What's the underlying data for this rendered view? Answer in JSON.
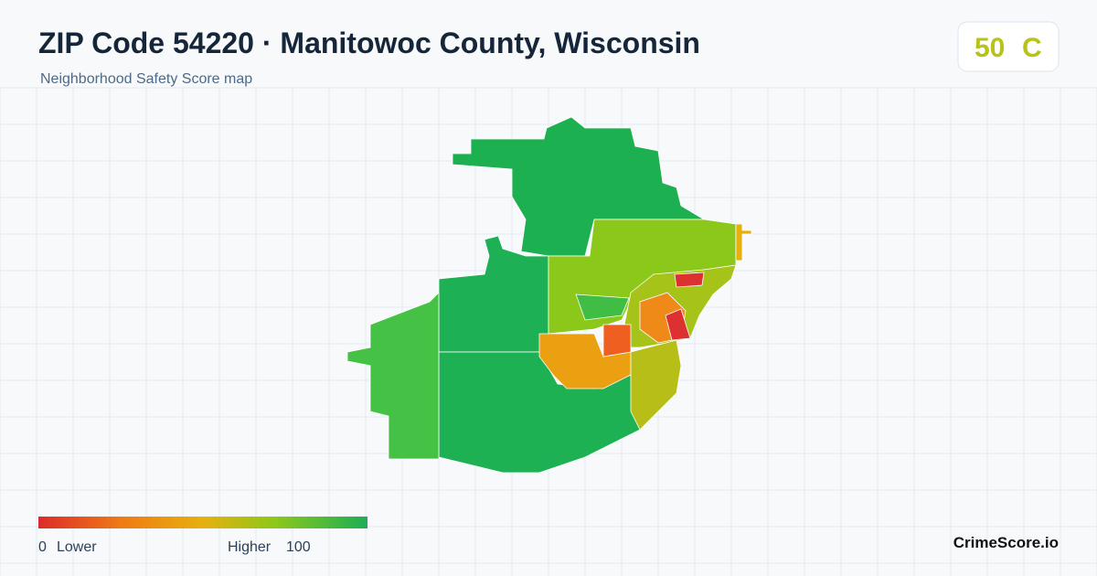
{
  "header": {
    "title": "ZIP Code 54220 · Manitowoc County, Wisconsin",
    "subtitle": "Neighborhood Safety Score map"
  },
  "score": {
    "value": 50,
    "grade": "C"
  },
  "legend": {
    "min": 0,
    "min_label": "Lower",
    "max_label": "Higher",
    "max": 100
  },
  "brand": "CrimeScore.io"
}
